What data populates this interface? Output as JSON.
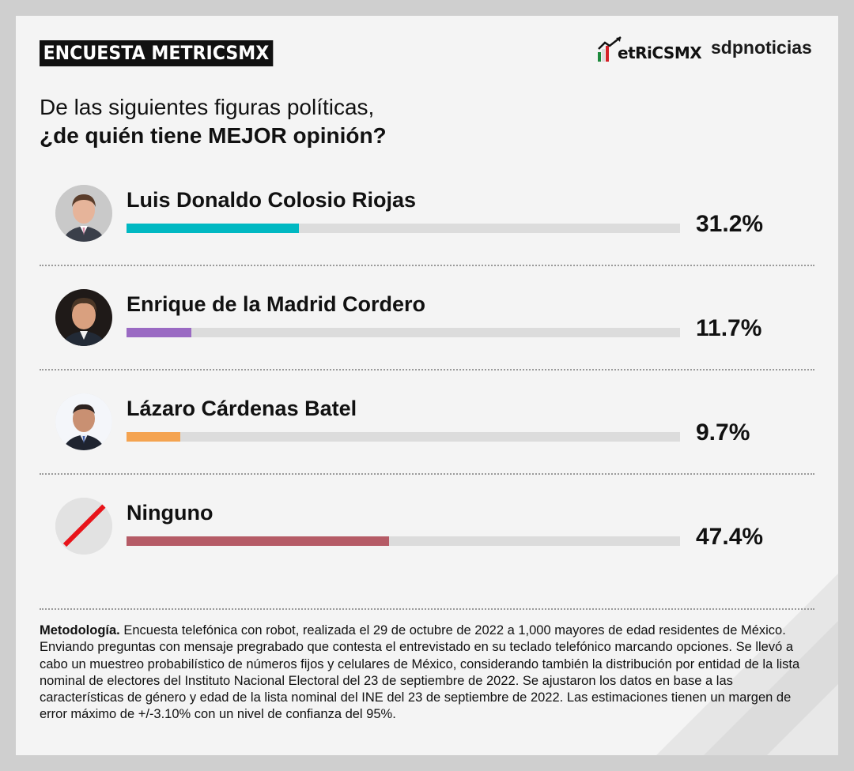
{
  "header": {
    "badge": "ENCUESTA METRICSMX",
    "logo_metrics": "etRiCSMX",
    "logo_sdp": "sdpnoticias"
  },
  "question": {
    "line1": "De las siguientes figuras políticas,",
    "line2": "¿de quién tiene MEJOR opinión?"
  },
  "chart_data": {
    "type": "bar",
    "categories": [
      "Luis Donaldo Colosio Riojas",
      "Enrique de la Madrid Cordero",
      "Lázaro Cárdenas Batel",
      "Ninguno"
    ],
    "values": [
      31.2,
      11.7,
      9.7,
      47.4
    ],
    "labels": [
      "31.2%",
      "11.7%",
      "9.7%",
      "47.4%"
    ],
    "colors": [
      "#00b8c2",
      "#9a6ac3",
      "#f4a350",
      "#b55b66"
    ],
    "ylim": [
      0,
      100
    ],
    "orientation": "horizontal",
    "title": "De las siguientes figuras políticas, ¿de quién tiene MEJOR opinión?"
  },
  "avatar_icons": [
    "person-photo-icon",
    "person-photo-icon",
    "person-photo-icon",
    "no-symbol-icon"
  ],
  "methodology": {
    "label": "Metodología.",
    "text": " Encuesta telefónica con robot, realizada el 29 de octubre de 2022 a 1,000 mayores de edad residentes de México. Enviando preguntas con mensaje pregrabado que contesta el entrevistado en su teclado telefónico marcando opciones. Se llevó a cabo un muestreo probabilístico de números fijos y celulares de México, considerando también la distribución por entidad de la lista nominal de electores del Instituto Nacional Electoral del 23 de septiembre de 2022. Se ajustaron los datos en base a las características de género y edad de la lista nominal del INE del 23 de septiembre de 2022. Las estimaciones tienen un margen de error máximo de +/-3.10% con un nivel de confianza del 95%."
  }
}
